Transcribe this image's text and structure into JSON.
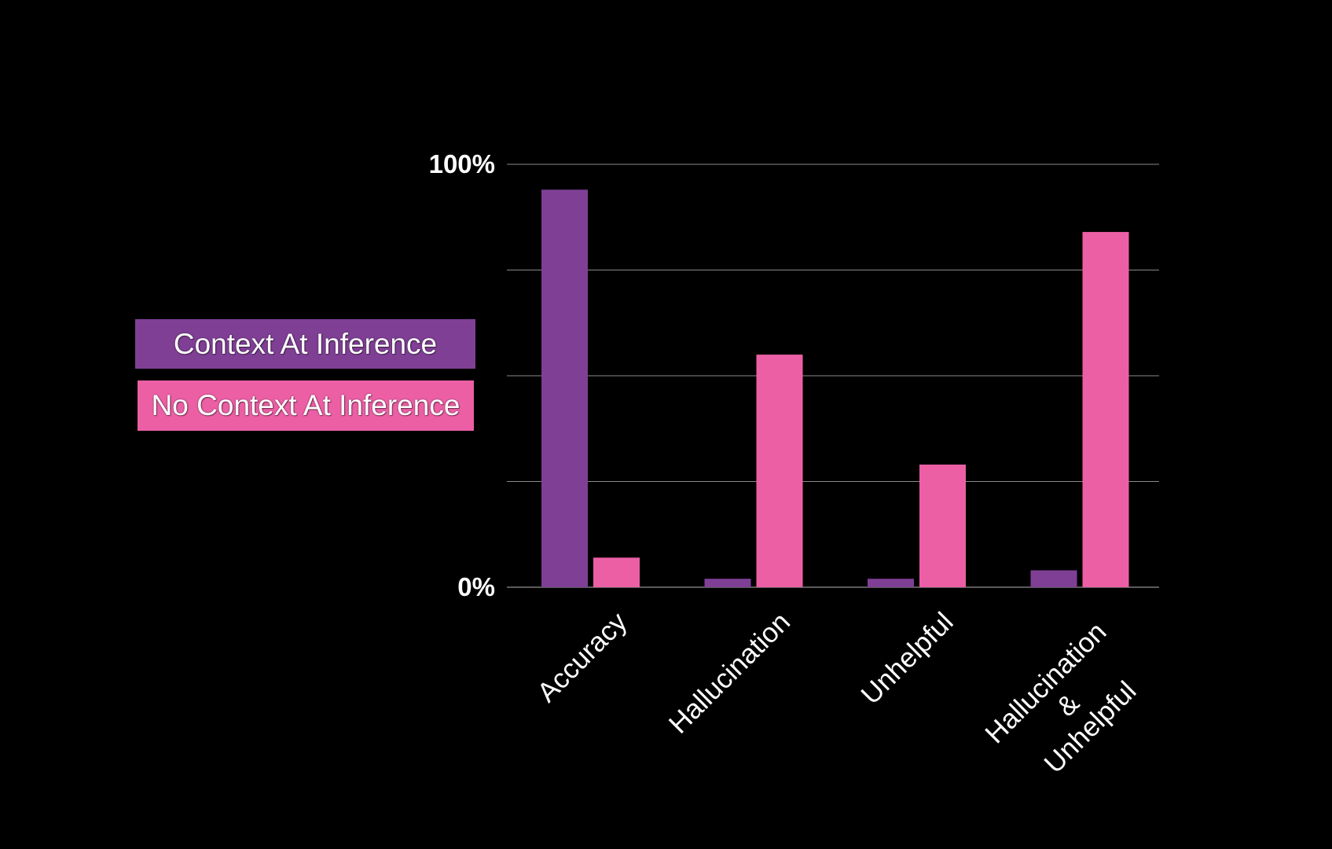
{
  "colors": {
    "background": "#000000",
    "series_context": "#7f3f95",
    "series_no_context": "#ec5fa5",
    "gridline": "#8a8a8a",
    "text": "#ffffff"
  },
  "legend": [
    {
      "label": "Context At Inference",
      "color": "#7f3f95"
    },
    {
      "label": "No Context At Inference",
      "color": "#ec5fa5"
    }
  ],
  "chart_data": {
    "type": "bar",
    "categories": [
      "Accuracy",
      "Hallucination",
      "Unhelpful",
      "Hallucination & Unhelpful"
    ],
    "category_label_lines": [
      [
        "Accuracy"
      ],
      [
        "Hallucination"
      ],
      [
        "Unhelpful"
      ],
      [
        "Hallucination",
        "&",
        "Unhelpful"
      ]
    ],
    "series": [
      {
        "name": "Context At Inference",
        "values": [
          94,
          2,
          2,
          4
        ]
      },
      {
        "name": "No Context At Inference",
        "values": [
          7,
          55,
          29,
          84
        ]
      }
    ],
    "ylim": [
      0,
      100
    ],
    "yticks": [
      0,
      25,
      50,
      75,
      100
    ],
    "ytick_labels": {
      "0": "0%",
      "100": "100%"
    },
    "grid": true,
    "legend_position": "left",
    "xlabel": "",
    "ylabel": "",
    "title": ""
  }
}
